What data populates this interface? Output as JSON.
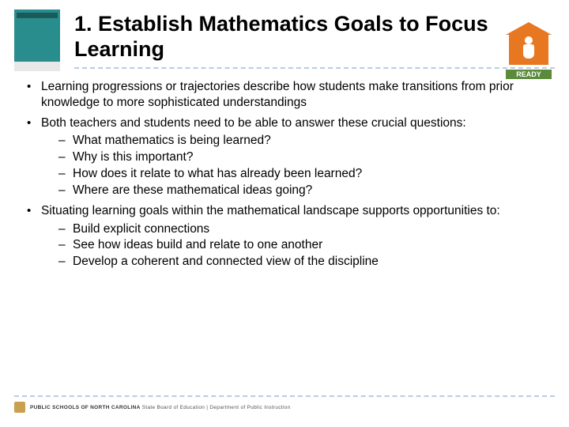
{
  "header": {
    "title": "1. Establish Mathematics Goals to Focus Learning",
    "ready_label": "READY"
  },
  "bullets": [
    {
      "text": "Learning progressions or trajectories describe how students make transitions from prior knowledge to more sophisticated understandings",
      "sub": []
    },
    {
      "text": "Both teachers and students need to be able to answer these crucial questions:",
      "sub": [
        "What mathematics is being learned?",
        "Why is this important?",
        "How does it relate to what has already been learned?",
        "Where are these mathematical ideas going?"
      ]
    },
    {
      "text": "Situating learning goals within the mathematical landscape supports opportunities to:",
      "sub": [
        "Build explicit connections",
        "See how ideas build and relate to one another",
        "Develop  a coherent and connected view of the discipline"
      ]
    }
  ],
  "footer": {
    "org": "PUBLIC SCHOOLS OF NORTH CAROLINA",
    "dept": "State Board of Education | Department of Public Instruction"
  },
  "colors": {
    "dash_border": "#b8cce4",
    "ready_orange": "#e87722",
    "ready_green": "#5a8a3a",
    "book_teal": "#2a8d8d"
  }
}
